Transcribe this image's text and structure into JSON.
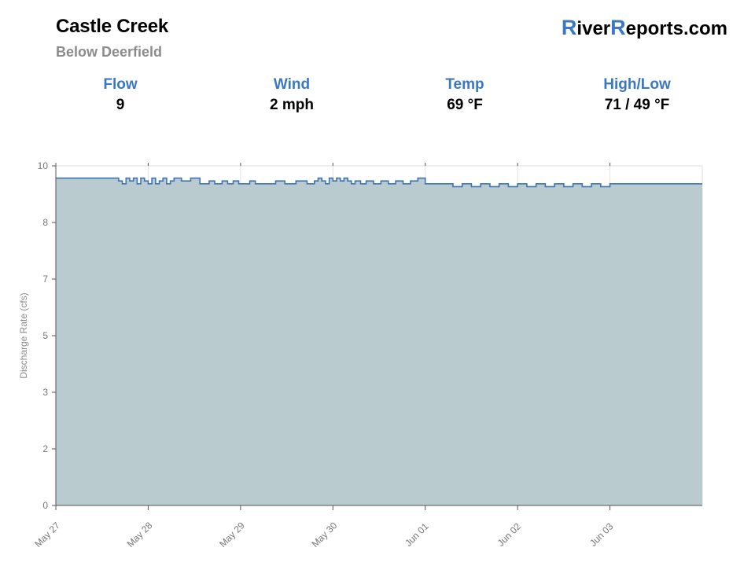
{
  "header": {
    "station_name": "Castle Creek",
    "station_location": "Below Deerfield",
    "brand": {
      "cap1": "R",
      "part1": "iver",
      "cap2": "R",
      "part2": "eports.com"
    }
  },
  "stats": [
    {
      "label": "Flow",
      "value": "9"
    },
    {
      "label": "Wind",
      "value": "2 mph"
    },
    {
      "label": "Temp",
      "value": "69 °F"
    },
    {
      "label": "High/Low",
      "value": "71 / 49 °F"
    }
  ],
  "colors": {
    "accent": "#3a78c3",
    "line": "#3d74b8",
    "fill": "#b9cbce",
    "grid": "#e4e4dc"
  },
  "chart_data": {
    "type": "area",
    "title": "",
    "xlabel": "",
    "ylabel": "Discharge Rate (cfs)",
    "xlim": [
      0,
      7
    ],
    "ylim": [
      0,
      10
    ],
    "y_scale": "nonlinear (axis labels 0,2,3,5,7,8,10 at evenly spaced ticks)",
    "y_ticks": [
      "0",
      "2",
      "3",
      "5",
      "7",
      "8",
      "10"
    ],
    "x_ticks": [
      "May 27",
      "May 28",
      "May 29",
      "May 30",
      "Jun 01",
      "Jun 02",
      "Jun 03"
    ],
    "grid": true,
    "legend": "none",
    "series": [
      {
        "values_note": "step series of discharge (cfs), x in days from May 27",
        "x": [
          0,
          0.68,
          0.72,
          0.76,
          0.8,
          0.84,
          0.88,
          0.92,
          0.96,
          1.0,
          1.04,
          1.08,
          1.12,
          1.16,
          1.2,
          1.24,
          1.28,
          1.36,
          1.46,
          1.56,
          1.66,
          1.72,
          1.8,
          1.86,
          1.92,
          1.98,
          2.04,
          2.1,
          2.16,
          2.24,
          2.38,
          2.48,
          2.6,
          2.72,
          2.8,
          2.84,
          2.88,
          2.92,
          2.96,
          3.0,
          3.04,
          3.08,
          3.12,
          3.16,
          3.2,
          3.24,
          3.3,
          3.36,
          3.44,
          3.52,
          3.6,
          3.68,
          3.76,
          3.84,
          3.92,
          4.0,
          4.1,
          4.2,
          4.3,
          4.4,
          4.5,
          4.6,
          4.7,
          4.8,
          4.9,
          5.0,
          5.1,
          5.2,
          5.3,
          5.4,
          5.5,
          5.6,
          5.7,
          5.8,
          5.9,
          6.0
        ],
        "values": [
          9.0,
          8.95,
          8.9,
          9.0,
          8.95,
          9.0,
          8.9,
          9.0,
          8.95,
          8.9,
          9.0,
          8.9,
          8.95,
          9.0,
          8.9,
          8.95,
          9.0,
          8.95,
          9.0,
          8.9,
          8.95,
          8.9,
          8.95,
          8.9,
          8.95,
          8.9,
          8.9,
          8.95,
          8.9,
          8.9,
          8.95,
          8.9,
          8.95,
          8.9,
          8.95,
          9.0,
          8.95,
          8.9,
          9.0,
          8.95,
          9.0,
          8.95,
          9.0,
          8.95,
          8.9,
          8.95,
          8.9,
          8.95,
          8.9,
          8.95,
          8.9,
          8.95,
          8.9,
          8.95,
          9.0,
          8.9,
          8.9,
          8.9,
          8.85,
          8.9,
          8.85,
          8.9,
          8.85,
          8.9,
          8.85,
          8.9,
          8.85,
          8.9,
          8.85,
          8.9,
          8.85,
          8.9,
          8.85,
          8.9,
          8.85,
          8.9
        ]
      }
    ]
  }
}
